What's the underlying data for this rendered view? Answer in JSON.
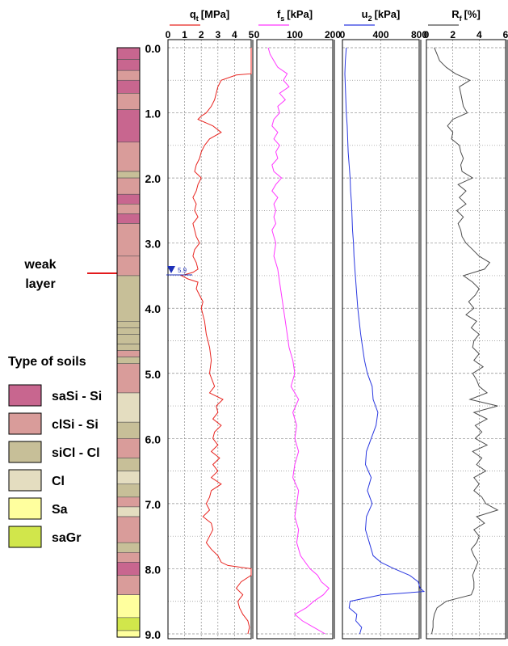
{
  "annotation": {
    "line1": "weak",
    "line2": "layer",
    "arrow_color": "#e31a1c"
  },
  "legend": {
    "title": "Type of soils",
    "items": [
      {
        "label": "saSi - Si",
        "color": "#c8668f"
      },
      {
        "label": "clSi - Si",
        "color": "#d99c9a"
      },
      {
        "label": "siCl - Cl",
        "color": "#c7bf98"
      },
      {
        "label": "Cl",
        "color": "#e4ddc0"
      },
      {
        "label": "Sa",
        "color": "#ffff9e"
      },
      {
        "label": "saGr",
        "color": "#d1e64b"
      }
    ]
  },
  "chart_data": {
    "type": "line",
    "depth_axis": {
      "ylim": [
        0,
        9.1
      ],
      "ticks": [
        "0.0",
        "1.0",
        "2.0",
        "3.0",
        "4.0",
        "5.0",
        "6.0",
        "7.0",
        "8.0",
        "9.0"
      ],
      "inverted": true,
      "grid": true
    },
    "soil_column": [
      {
        "top": 0.0,
        "bottom": 0.18,
        "soil": "saSi - Si"
      },
      {
        "top": 0.18,
        "bottom": 0.35,
        "soil": "saSi - Si"
      },
      {
        "top": 0.35,
        "bottom": 0.5,
        "soil": "clSi - Si"
      },
      {
        "top": 0.5,
        "bottom": 0.7,
        "soil": "saSi - Si"
      },
      {
        "top": 0.7,
        "bottom": 0.95,
        "soil": "clSi - Si"
      },
      {
        "top": 0.95,
        "bottom": 1.45,
        "soil": "saSi - Si"
      },
      {
        "top": 1.45,
        "bottom": 1.9,
        "soil": "clSi - Si"
      },
      {
        "top": 1.9,
        "bottom": 2.0,
        "soil": "siCl - Cl"
      },
      {
        "top": 2.0,
        "bottom": 2.25,
        "soil": "clSi - Si"
      },
      {
        "top": 2.25,
        "bottom": 2.4,
        "soil": "saSi - Si"
      },
      {
        "top": 2.4,
        "bottom": 2.55,
        "soil": "clSi - Si"
      },
      {
        "top": 2.55,
        "bottom": 2.7,
        "soil": "saSi - Si"
      },
      {
        "top": 2.7,
        "bottom": 3.2,
        "soil": "clSi - Si"
      },
      {
        "top": 3.2,
        "bottom": 3.5,
        "soil": "clSi - Si"
      },
      {
        "top": 3.5,
        "bottom": 4.2,
        "soil": "siCl - Cl"
      },
      {
        "top": 4.2,
        "bottom": 4.3,
        "soil": "siCl - Cl"
      },
      {
        "top": 4.3,
        "bottom": 4.4,
        "soil": "siCl - Cl"
      },
      {
        "top": 4.4,
        "bottom": 4.55,
        "soil": "siCl - Cl"
      },
      {
        "top": 4.55,
        "bottom": 4.65,
        "soil": "siCl - Cl"
      },
      {
        "top": 4.65,
        "bottom": 4.75,
        "soil": "clSi - Si"
      },
      {
        "top": 4.75,
        "bottom": 4.85,
        "soil": "siCl - Cl"
      },
      {
        "top": 4.85,
        "bottom": 5.3,
        "soil": "clSi - Si"
      },
      {
        "top": 5.3,
        "bottom": 5.75,
        "soil": "Cl"
      },
      {
        "top": 5.75,
        "bottom": 6.0,
        "soil": "siCl - Cl"
      },
      {
        "top": 6.0,
        "bottom": 6.3,
        "soil": "clSi - Si"
      },
      {
        "top": 6.3,
        "bottom": 6.5,
        "soil": "siCl - Cl"
      },
      {
        "top": 6.5,
        "bottom": 6.7,
        "soil": "Cl"
      },
      {
        "top": 6.7,
        "bottom": 6.9,
        "soil": "siCl - Cl"
      },
      {
        "top": 6.9,
        "bottom": 7.05,
        "soil": "clSi - Si"
      },
      {
        "top": 7.05,
        "bottom": 7.2,
        "soil": "Cl"
      },
      {
        "top": 7.2,
        "bottom": 7.6,
        "soil": "clSi - Si"
      },
      {
        "top": 7.6,
        "bottom": 7.75,
        "soil": "siCl - Cl"
      },
      {
        "top": 7.75,
        "bottom": 7.9,
        "soil": "clSi - Si"
      },
      {
        "top": 7.9,
        "bottom": 8.1,
        "soil": "saSi - Si"
      },
      {
        "top": 8.1,
        "bottom": 8.4,
        "soil": "clSi - Si"
      },
      {
        "top": 8.4,
        "bottom": 8.75,
        "soil": "Sa"
      },
      {
        "top": 8.75,
        "bottom": 8.95,
        "soil": "saGr"
      },
      {
        "top": 8.95,
        "bottom": 9.05,
        "soil": "Sa"
      }
    ],
    "water_level": {
      "depth": 3.5,
      "label": "5.9"
    },
    "panels": [
      {
        "title": "q",
        "title_sub": "t",
        "unit": "[MPa]",
        "xlim": [
          0,
          5
        ],
        "ticks": [
          0,
          1,
          2,
          3,
          4,
          5
        ],
        "tick_labels": [
          "0",
          "1",
          "2",
          "3",
          "4",
          "5"
        ],
        "color": "#e8241f",
        "depth": [
          0.0,
          0.2,
          0.4,
          0.42,
          0.5,
          0.6,
          0.7,
          0.8,
          0.9,
          1.0,
          1.05,
          1.1,
          1.2,
          1.3,
          1.4,
          1.5,
          1.6,
          1.7,
          1.8,
          1.9,
          2.0,
          2.1,
          2.2,
          2.3,
          2.4,
          2.5,
          2.6,
          2.7,
          2.8,
          2.9,
          3.0,
          3.1,
          3.2,
          3.3,
          3.4,
          3.45,
          3.5,
          3.55,
          3.6,
          3.7,
          3.8,
          3.9,
          4.0,
          4.2,
          4.4,
          4.6,
          4.8,
          5.0,
          5.2,
          5.3,
          5.4,
          5.5,
          5.6,
          5.7,
          5.8,
          5.9,
          6.0,
          6.1,
          6.2,
          6.3,
          6.4,
          6.5,
          6.6,
          6.7,
          6.8,
          6.9,
          7.0,
          7.1,
          7.2,
          7.3,
          7.4,
          7.5,
          7.6,
          7.7,
          7.8,
          7.9,
          7.95,
          8.0,
          8.1,
          8.2,
          8.3,
          8.4,
          8.5,
          8.6,
          8.7,
          8.8,
          8.9,
          9.0
        ],
        "values": [
          5.0,
          5.0,
          5.0,
          4.1,
          3.2,
          3.0,
          2.9,
          2.8,
          2.6,
          2.3,
          2.0,
          1.8,
          2.7,
          3.2,
          2.5,
          2.2,
          2.0,
          1.9,
          1.7,
          1.6,
          2.0,
          1.8,
          1.7,
          1.5,
          1.7,
          1.6,
          1.8,
          1.5,
          1.6,
          1.7,
          1.9,
          1.6,
          1.5,
          1.7,
          1.8,
          1.5,
          0.8,
          1.2,
          1.8,
          1.7,
          1.9,
          2.1,
          2.0,
          2.2,
          2.3,
          2.5,
          2.6,
          2.5,
          2.8,
          2.5,
          3.3,
          2.9,
          3.0,
          2.7,
          3.2,
          2.8,
          2.7,
          3.0,
          2.6,
          3.1,
          2.7,
          3.0,
          2.6,
          3.2,
          2.6,
          2.5,
          2.3,
          2.5,
          2.1,
          2.6,
          2.7,
          2.5,
          2.3,
          2.6,
          3.0,
          3.2,
          3.6,
          5.0,
          5.0,
          4.4,
          4.1,
          4.5,
          4.2,
          4.3,
          4.5,
          4.8,
          4.9,
          4.8
        ]
      },
      {
        "title": "f",
        "title_sub": "s",
        "unit": "[kPa]",
        "xlim": [
          0,
          200
        ],
        "ticks": [
          0,
          100,
          200
        ],
        "tick_labels": [
          "0",
          "100",
          "200"
        ],
        "color": "#ff36ff",
        "depth": [
          0.0,
          0.1,
          0.2,
          0.3,
          0.4,
          0.5,
          0.6,
          0.7,
          0.8,
          0.9,
          1.0,
          1.1,
          1.2,
          1.3,
          1.4,
          1.5,
          1.6,
          1.7,
          1.8,
          1.9,
          2.0,
          2.1,
          2.2,
          2.3,
          2.4,
          2.5,
          2.6,
          2.7,
          2.8,
          2.9,
          3.0,
          3.2,
          3.4,
          3.6,
          3.8,
          4.0,
          4.2,
          4.4,
          4.6,
          4.8,
          5.0,
          5.2,
          5.4,
          5.6,
          5.8,
          6.0,
          6.2,
          6.4,
          6.6,
          6.8,
          7.0,
          7.2,
          7.4,
          7.6,
          7.8,
          8.0,
          8.1,
          8.2,
          8.3,
          8.4,
          8.5,
          8.6,
          8.7,
          8.8,
          8.9,
          9.0
        ],
        "values": [
          30,
          35,
          45,
          55,
          80,
          70,
          85,
          60,
          75,
          55,
          60,
          45,
          40,
          55,
          45,
          60,
          50,
          55,
          40,
          45,
          65,
          50,
          40,
          55,
          45,
          50,
          45,
          50,
          40,
          45,
          50,
          45,
          55,
          60,
          65,
          70,
          75,
          80,
          85,
          95,
          100,
          90,
          110,
          95,
          105,
          100,
          110,
          100,
          95,
          110,
          105,
          100,
          110,
          105,
          115,
          140,
          160,
          170,
          190,
          175,
          150,
          130,
          100,
          120,
          150,
          180
        ]
      },
      {
        "title": "u",
        "title_sub": "2",
        "unit": "[kPa]",
        "xlim": [
          0,
          800
        ],
        "ticks": [
          0,
          400,
          800
        ],
        "tick_labels": [
          "0",
          "400",
          "800"
        ],
        "color": "#2a38e0",
        "depth": [
          0.0,
          0.2,
          0.4,
          0.6,
          0.8,
          1.0,
          1.2,
          1.4,
          1.6,
          1.8,
          2.0,
          2.2,
          2.4,
          2.6,
          2.8,
          3.0,
          3.2,
          3.4,
          3.6,
          3.8,
          4.0,
          4.2,
          4.4,
          4.6,
          4.8,
          5.0,
          5.2,
          5.4,
          5.6,
          5.8,
          6.0,
          6.2,
          6.4,
          6.6,
          6.8,
          7.0,
          7.2,
          7.4,
          7.6,
          7.8,
          7.9,
          8.0,
          8.1,
          8.2,
          8.3,
          8.35,
          8.4,
          8.5,
          8.6,
          8.7,
          8.8,
          8.9,
          9.0
        ],
        "values": [
          40,
          30,
          25,
          30,
          35,
          40,
          50,
          55,
          60,
          70,
          80,
          85,
          95,
          100,
          105,
          115,
          120,
          130,
          140,
          150,
          160,
          175,
          190,
          210,
          230,
          260,
          310,
          320,
          370,
          350,
          300,
          250,
          240,
          300,
          260,
          310,
          250,
          240,
          280,
          320,
          400,
          540,
          700,
          790,
          810,
          850,
          400,
          80,
          70,
          150,
          140,
          200,
          180
        ]
      },
      {
        "title": "R",
        "title_sub": "f",
        "unit": "[%]",
        "xlim": [
          0,
          6
        ],
        "ticks": [
          0,
          2,
          4,
          6
        ],
        "tick_labels": [
          "0",
          "2",
          "4",
          "6"
        ],
        "color": "#4d4d4d",
        "depth": [
          0.0,
          0.1,
          0.2,
          0.3,
          0.4,
          0.5,
          0.6,
          0.7,
          0.8,
          0.9,
          1.0,
          1.1,
          1.2,
          1.3,
          1.4,
          1.5,
          1.6,
          1.7,
          1.8,
          1.9,
          2.0,
          2.1,
          2.2,
          2.3,
          2.4,
          2.5,
          2.6,
          2.7,
          2.8,
          2.9,
          3.0,
          3.1,
          3.2,
          3.3,
          3.4,
          3.5,
          3.6,
          3.7,
          3.8,
          3.9,
          4.0,
          4.1,
          4.2,
          4.3,
          4.4,
          4.5,
          4.6,
          4.7,
          4.8,
          4.9,
          5.0,
          5.1,
          5.2,
          5.3,
          5.4,
          5.5,
          5.6,
          5.7,
          5.8,
          5.9,
          6.0,
          6.1,
          6.2,
          6.3,
          6.4,
          6.5,
          6.6,
          6.7,
          6.8,
          6.9,
          7.0,
          7.1,
          7.2,
          7.3,
          7.4,
          7.5,
          7.6,
          7.7,
          7.8,
          7.9,
          8.0,
          8.1,
          8.2,
          8.3,
          8.4,
          8.5,
          8.6,
          8.7,
          8.8,
          8.9,
          9.0
        ],
        "values": [
          0.6,
          0.8,
          1.0,
          1.5,
          2.2,
          3.3,
          2.5,
          2.6,
          2.7,
          2.8,
          3.1,
          2.0,
          1.6,
          2.0,
          1.9,
          2.5,
          2.6,
          2.8,
          2.6,
          2.7,
          3.5,
          2.4,
          3.0,
          2.5,
          3.0,
          2.3,
          2.8,
          2.4,
          2.6,
          2.7,
          3.0,
          3.5,
          4.0,
          4.8,
          4.4,
          2.8,
          3.5,
          4.0,
          3.7,
          3.2,
          3.6,
          3.0,
          3.8,
          3.4,
          4.0,
          3.6,
          3.5,
          4.0,
          3.6,
          4.3,
          3.5,
          3.8,
          4.0,
          4.6,
          3.3,
          5.4,
          3.6,
          4.6,
          3.7,
          4.2,
          3.7,
          4.6,
          3.5,
          4.2,
          3.8,
          4.5,
          3.6,
          4.0,
          3.6,
          4.2,
          4.5,
          5.4,
          3.8,
          4.4,
          3.6,
          4.0,
          3.8,
          3.4,
          3.6,
          3.9,
          3.7,
          3.5,
          3.6,
          3.6,
          3.4,
          1.5,
          0.8,
          0.6,
          0.5,
          0.5,
          0.4
        ]
      }
    ]
  }
}
